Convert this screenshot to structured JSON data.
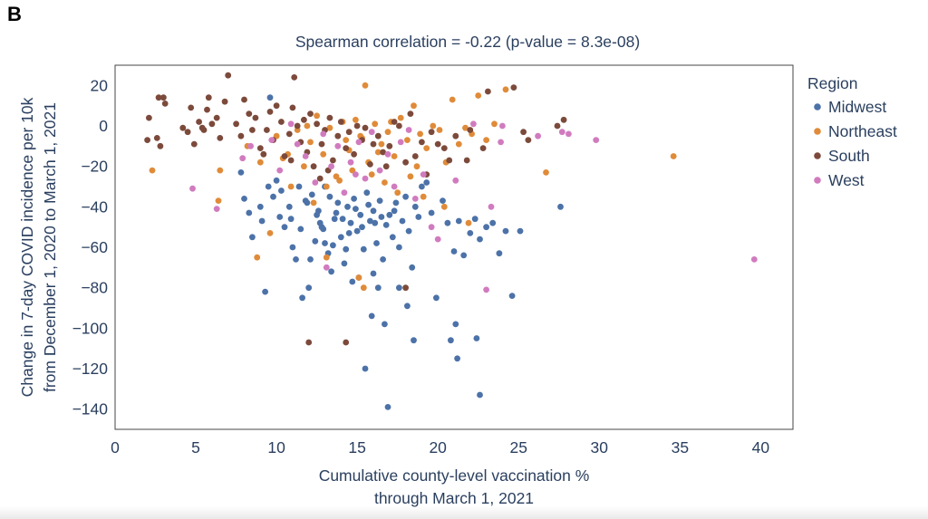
{
  "panel_label": "B",
  "chart_data": {
    "type": "scatter",
    "title": "Spearman correlation = -0.22 (p-value = 8.3e-08)",
    "xlabel_lines": [
      "Cumulative county-level vaccination %",
      "through March 1, 2021"
    ],
    "ylabel_lines": [
      "Change in 7-day COVID incidence per 10k",
      "from December 1, 2020 to March 1, 2021"
    ],
    "xlim": [
      0,
      42
    ],
    "ylim": [
      -150,
      30
    ],
    "xticks": [
      0,
      5,
      10,
      15,
      20,
      25,
      30,
      35,
      40
    ],
    "yticks": [
      20,
      0,
      -20,
      -40,
      -60,
      -80,
      -100,
      -120,
      -140
    ],
    "ytick_labels": [
      "20",
      "0",
      "−20",
      "−40",
      "−60",
      "−80",
      "−100",
      "−120",
      "−140"
    ],
    "grid": false,
    "legend_title": "Region",
    "legend_position": "right",
    "series": [
      {
        "name": "Midwest",
        "color": "#4c72a8",
        "points": [
          [
            9.3,
            -82
          ],
          [
            9.6,
            14
          ],
          [
            7.8,
            -23
          ],
          [
            8.0,
            -36
          ],
          [
            8.3,
            -43
          ],
          [
            8.5,
            -55
          ],
          [
            9.0,
            -40
          ],
          [
            9.5,
            -30
          ],
          [
            9.8,
            -35
          ],
          [
            10.0,
            -27
          ],
          [
            10.2,
            -45
          ],
          [
            10.5,
            -50
          ],
          [
            10.8,
            -40
          ],
          [
            11.0,
            -60
          ],
          [
            11.2,
            -66
          ],
          [
            11.4,
            -30
          ],
          [
            11.6,
            -85
          ],
          [
            11.8,
            -37
          ],
          [
            12.0,
            -80
          ],
          [
            12.2,
            -34
          ],
          [
            12.4,
            -57
          ],
          [
            12.6,
            -42
          ],
          [
            12.8,
            -50
          ],
          [
            13.0,
            -30
          ],
          [
            13.2,
            -63
          ],
          [
            13.4,
            -72
          ],
          [
            13.6,
            -46
          ],
          [
            13.8,
            -38
          ],
          [
            14.0,
            -55
          ],
          [
            14.2,
            -68
          ],
          [
            14.4,
            -40
          ],
          [
            14.6,
            -48
          ],
          [
            14.8,
            -36
          ],
          [
            15.0,
            -52
          ],
          [
            15.2,
            -44
          ],
          [
            15.4,
            -61
          ],
          [
            15.6,
            -33
          ],
          [
            15.8,
            -47
          ],
          [
            16.0,
            -42
          ],
          [
            16.2,
            -58
          ],
          [
            16.4,
            -37
          ],
          [
            16.6,
            -66
          ],
          [
            16.8,
            -49
          ],
          [
            17.0,
            -44
          ],
          [
            17.2,
            -55
          ],
          [
            17.4,
            -38
          ],
          [
            17.6,
            -60
          ],
          [
            17.8,
            -47
          ],
          [
            18.0,
            -35
          ],
          [
            18.2,
            -52
          ],
          [
            18.4,
            -70
          ],
          [
            18.6,
            -40
          ],
          [
            18.8,
            -45
          ],
          [
            19.0,
            -30
          ],
          [
            19.3,
            -28
          ],
          [
            19.6,
            -43
          ],
          [
            19.9,
            -85
          ],
          [
            20.3,
            -37
          ],
          [
            20.6,
            -48
          ],
          [
            21.0,
            -62
          ],
          [
            21.3,
            -47
          ],
          [
            21.6,
            -64
          ],
          [
            22.0,
            -53
          ],
          [
            22.3,
            -46
          ],
          [
            22.6,
            -56
          ],
          [
            23.0,
            -50
          ],
          [
            23.4,
            -48
          ],
          [
            23.8,
            -63
          ],
          [
            24.2,
            -52
          ],
          [
            24.6,
            -84
          ],
          [
            25.1,
            -52
          ],
          [
            27.6,
            -40
          ],
          [
            12.5,
            -44
          ],
          [
            13.3,
            -35
          ],
          [
            14.1,
            -46
          ],
          [
            14.9,
            -41
          ],
          [
            15.7,
            -39
          ],
          [
            16.5,
            -45
          ],
          [
            17.3,
            -42
          ],
          [
            12.9,
            -51
          ],
          [
            14.5,
            -53
          ],
          [
            15.3,
            -50
          ],
          [
            16.1,
            -48
          ],
          [
            13.7,
            -43
          ],
          [
            11.9,
            -38
          ],
          [
            10.9,
            -46
          ],
          [
            12.1,
            -66
          ],
          [
            13.5,
            -59
          ],
          [
            14.7,
            -77
          ],
          [
            15.1,
            -75
          ],
          [
            15.5,
            -120
          ],
          [
            15.9,
            -94
          ],
          [
            16.3,
            -80
          ],
          [
            16.7,
            -98
          ],
          [
            16.9,
            -139
          ],
          [
            17.6,
            -80
          ],
          [
            18.1,
            -89
          ],
          [
            18.5,
            -106
          ],
          [
            20.8,
            -106
          ],
          [
            21.1,
            -98
          ],
          [
            21.2,
            -115
          ],
          [
            22.4,
            -105
          ],
          [
            22.6,
            -133
          ],
          [
            16.0,
            -73
          ],
          [
            13.0,
            -58
          ],
          [
            11.5,
            -51
          ],
          [
            10.3,
            -32
          ],
          [
            9.1,
            -47
          ],
          [
            12.7,
            -48
          ],
          [
            14.3,
            -61
          ]
        ]
      },
      {
        "name": "Northeast",
        "color": "#e08b39",
        "points": [
          [
            2.3,
            -22
          ],
          [
            6.5,
            -22
          ],
          [
            6.4,
            -37
          ],
          [
            8.2,
            -10
          ],
          [
            9.0,
            -18
          ],
          [
            9.6,
            -53
          ],
          [
            10.0,
            -5
          ],
          [
            10.4,
            -16
          ],
          [
            10.9,
            -30
          ],
          [
            11.3,
            -2
          ],
          [
            11.7,
            -20
          ],
          [
            12.1,
            -8
          ],
          [
            12.5,
            5
          ],
          [
            12.9,
            -14
          ],
          [
            13.3,
            -1
          ],
          [
            13.7,
            -25
          ],
          [
            14.1,
            2
          ],
          [
            14.5,
            -12
          ],
          [
            14.9,
            3
          ],
          [
            15.3,
            -6
          ],
          [
            15.5,
            20
          ],
          [
            15.7,
            -18
          ],
          [
            16.1,
            1
          ],
          [
            16.5,
            -9
          ],
          [
            16.9,
            -3
          ],
          [
            17.3,
            -15
          ],
          [
            17.7,
            4
          ],
          [
            18.1,
            -7
          ],
          [
            18.5,
            10
          ],
          [
            18.9,
            -4
          ],
          [
            19.3,
            -11
          ],
          [
            19.7,
            0
          ],
          [
            20.1,
            -2
          ],
          [
            20.5,
            -18
          ],
          [
            20.9,
            13
          ],
          [
            21.3,
            -9
          ],
          [
            21.7,
            -1
          ],
          [
            22.1,
            -4
          ],
          [
            22.5,
            15
          ],
          [
            23.0,
            -7
          ],
          [
            23.5,
            1
          ],
          [
            24.2,
            18
          ],
          [
            26.7,
            -23
          ],
          [
            34.6,
            -15
          ],
          [
            12.3,
            -38
          ],
          [
            13.1,
            -30
          ],
          [
            13.9,
            -27
          ],
          [
            14.7,
            -22
          ],
          [
            15.9,
            -24
          ],
          [
            16.7,
            -28
          ],
          [
            17.5,
            -33
          ],
          [
            18.3,
            -25
          ],
          [
            19.1,
            -35
          ],
          [
            15.1,
            -75
          ],
          [
            15.4,
            -80
          ],
          [
            13.1,
            -65
          ],
          [
            8.8,
            -65
          ],
          [
            10.7,
            -14
          ],
          [
            11.9,
            0
          ],
          [
            14.3,
            -7
          ],
          [
            15.2,
            -5
          ],
          [
            16.3,
            -13
          ],
          [
            17.1,
            2
          ],
          [
            18.7,
            -20
          ],
          [
            20.4,
            -40
          ],
          [
            21.9,
            -48
          ]
        ]
      },
      {
        "name": "South",
        "color": "#7c4a3b",
        "points": [
          [
            2.0,
            -7
          ],
          [
            2.1,
            4
          ],
          [
            2.6,
            -6
          ],
          [
            2.7,
            14
          ],
          [
            2.8,
            -10
          ],
          [
            3.0,
            14
          ],
          [
            3.1,
            11
          ],
          [
            4.2,
            -1
          ],
          [
            4.5,
            -3
          ],
          [
            4.7,
            9
          ],
          [
            4.9,
            -9
          ],
          [
            5.2,
            2
          ],
          [
            5.4,
            -1
          ],
          [
            5.5,
            -2
          ],
          [
            5.7,
            8
          ],
          [
            5.8,
            14
          ],
          [
            6.0,
            1
          ],
          [
            6.3,
            4
          ],
          [
            6.5,
            -6
          ],
          [
            6.8,
            12
          ],
          [
            7.0,
            25
          ],
          [
            7.5,
            1
          ],
          [
            7.8,
            -5
          ],
          [
            8.0,
            13
          ],
          [
            8.3,
            6
          ],
          [
            8.5,
            -2
          ],
          [
            8.7,
            4
          ],
          [
            9.0,
            -11
          ],
          [
            9.4,
            -2
          ],
          [
            9.6,
            7
          ],
          [
            9.8,
            -7
          ],
          [
            10.0,
            10
          ],
          [
            10.3,
            2
          ],
          [
            10.5,
            -15
          ],
          [
            10.8,
            -4
          ],
          [
            11.0,
            9
          ],
          [
            11.1,
            24
          ],
          [
            11.3,
            0
          ],
          [
            11.5,
            -8
          ],
          [
            11.7,
            3
          ],
          [
            11.9,
            -13
          ],
          [
            12.1,
            6
          ],
          [
            12.3,
            -20
          ],
          [
            12.5,
            1
          ],
          [
            12.8,
            -9
          ],
          [
            13.0,
            -2
          ],
          [
            13.3,
            4
          ],
          [
            13.5,
            -17
          ],
          [
            13.8,
            -5
          ],
          [
            14.0,
            2
          ],
          [
            14.3,
            -11
          ],
          [
            14.5,
            -3
          ],
          [
            14.8,
            -14
          ],
          [
            15.0,
            0
          ],
          [
            15.3,
            -7
          ],
          [
            15.5,
            -1
          ],
          [
            15.8,
            -19
          ],
          [
            16.0,
            -9
          ],
          [
            16.3,
            -5
          ],
          [
            16.6,
            -13
          ],
          [
            17.0,
            -10
          ],
          [
            17.3,
            2
          ],
          [
            17.6,
            0
          ],
          [
            18.0,
            -18
          ],
          [
            18.3,
            6
          ],
          [
            18.6,
            -15
          ],
          [
            19.0,
            -8
          ],
          [
            19.3,
            -24
          ],
          [
            19.6,
            -3
          ],
          [
            20.0,
            -9
          ],
          [
            20.4,
            -11
          ],
          [
            20.7,
            -17
          ],
          [
            21.1,
            -5
          ],
          [
            21.8,
            -17
          ],
          [
            22.0,
            -2
          ],
          [
            22.8,
            -11
          ],
          [
            23.1,
            17
          ],
          [
            24.7,
            19
          ],
          [
            25.3,
            -3
          ],
          [
            25.6,
            -7
          ],
          [
            27.4,
            0
          ],
          [
            27.8,
            3
          ],
          [
            12.0,
            -107
          ],
          [
            14.3,
            -107
          ],
          [
            18.0,
            -80
          ],
          [
            10.9,
            -17
          ],
          [
            13.2,
            -22
          ],
          [
            16.8,
            -20
          ],
          [
            9.2,
            -14
          ],
          [
            12.7,
            -26
          ]
        ]
      },
      {
        "name": "West",
        "color": "#d17bbf",
        "points": [
          [
            4.8,
            -31
          ],
          [
            6.3,
            -41
          ],
          [
            7.9,
            -16
          ],
          [
            8.4,
            -10
          ],
          [
            9.7,
            -7
          ],
          [
            10.2,
            -22
          ],
          [
            10.9,
            1
          ],
          [
            11.3,
            -9
          ],
          [
            11.8,
            -15
          ],
          [
            12.4,
            -28
          ],
          [
            12.9,
            -4
          ],
          [
            13.4,
            -20
          ],
          [
            13.8,
            -10
          ],
          [
            14.2,
            -33
          ],
          [
            14.6,
            -18
          ],
          [
            15.1,
            -8
          ],
          [
            15.5,
            -26
          ],
          [
            15.9,
            -3
          ],
          [
            16.4,
            -22
          ],
          [
            16.9,
            -14
          ],
          [
            17.3,
            -30
          ],
          [
            17.7,
            -8
          ],
          [
            18.2,
            -2
          ],
          [
            18.6,
            -36
          ],
          [
            19.1,
            -24
          ],
          [
            19.6,
            -50
          ],
          [
            20.0,
            -56
          ],
          [
            21.1,
            -27
          ],
          [
            22.2,
            1
          ],
          [
            23.0,
            -81
          ],
          [
            23.3,
            -40
          ],
          [
            23.9,
            -8
          ],
          [
            24.0,
            0
          ],
          [
            26.2,
            -5
          ],
          [
            27.7,
            -3
          ],
          [
            28.1,
            -4
          ],
          [
            29.8,
            -7
          ],
          [
            39.6,
            -66
          ],
          [
            13.1,
            -70
          ],
          [
            14.9,
            -24
          ]
        ]
      }
    ]
  }
}
